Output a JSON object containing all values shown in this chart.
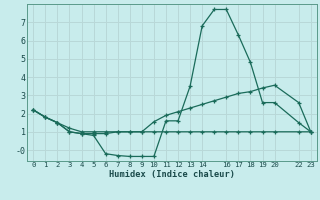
{
  "xlabel": "Humidex (Indice chaleur)",
  "background_color": "#c8ecec",
  "grid_color": "#b8d8d8",
  "line_color": "#1a6b5a",
  "ylim": [
    -0.6,
    8.0
  ],
  "xlim": [
    -0.5,
    23.5
  ],
  "yticks": [
    0,
    1,
    2,
    3,
    4,
    5,
    6,
    7
  ],
  "ytick_labels": [
    "-0",
    "1",
    "2",
    "3",
    "4",
    "5",
    "6",
    "7"
  ],
  "grid_xticks": [
    0,
    1,
    2,
    3,
    4,
    5,
    6,
    7,
    8,
    9,
    10,
    11,
    12,
    13,
    14,
    15,
    16,
    17,
    18,
    19,
    20,
    21,
    22,
    23
  ],
  "label_xticks": [
    0,
    1,
    2,
    3,
    4,
    5,
    6,
    7,
    8,
    9,
    10,
    11,
    12,
    13,
    14,
    16,
    17,
    18,
    19,
    20,
    22,
    23
  ],
  "label_xticklabels": [
    "0",
    "1",
    "2",
    "3",
    "4",
    "5",
    "6",
    "7",
    "8",
    "9",
    "10",
    "11",
    "12",
    "13",
    "14",
    "16",
    "17",
    "18",
    "19",
    "20",
    "22",
    "23"
  ],
  "series": [
    {
      "x": [
        0,
        1,
        2,
        3,
        4,
        5,
        6,
        7,
        8,
        9,
        10,
        11,
        12,
        13,
        14,
        15,
        16,
        17,
        18,
        19,
        20,
        22,
        23
      ],
      "y": [
        2.2,
        1.8,
        1.5,
        1.0,
        0.9,
        0.8,
        -0.2,
        -0.3,
        -0.35,
        -0.35,
        -0.35,
        1.6,
        1.6,
        3.5,
        6.8,
        7.7,
        7.7,
        6.3,
        4.8,
        2.6,
        2.6,
        1.5,
        1.0
      ]
    },
    {
      "x": [
        0,
        1,
        2,
        3,
        4,
        5,
        6,
        7,
        8,
        9,
        10,
        11,
        12,
        13,
        14,
        15,
        16,
        17,
        18,
        19,
        20,
        22,
        23
      ],
      "y": [
        2.2,
        1.8,
        1.5,
        1.0,
        0.9,
        0.9,
        0.9,
        1.0,
        1.0,
        1.0,
        1.55,
        1.9,
        2.1,
        2.3,
        2.5,
        2.7,
        2.9,
        3.1,
        3.2,
        3.4,
        3.55,
        2.6,
        1.0
      ]
    },
    {
      "x": [
        0,
        1,
        2,
        3,
        4,
        5,
        6,
        7,
        8,
        9,
        10,
        11,
        12,
        13,
        14,
        15,
        16,
        17,
        18,
        19,
        20,
        22,
        23
      ],
      "y": [
        2.2,
        1.8,
        1.5,
        1.2,
        1.0,
        1.0,
        1.0,
        1.0,
        1.0,
        1.0,
        1.0,
        1.0,
        1.0,
        1.0,
        1.0,
        1.0,
        1.0,
        1.0,
        1.0,
        1.0,
        1.0,
        1.0,
        1.0
      ]
    }
  ]
}
